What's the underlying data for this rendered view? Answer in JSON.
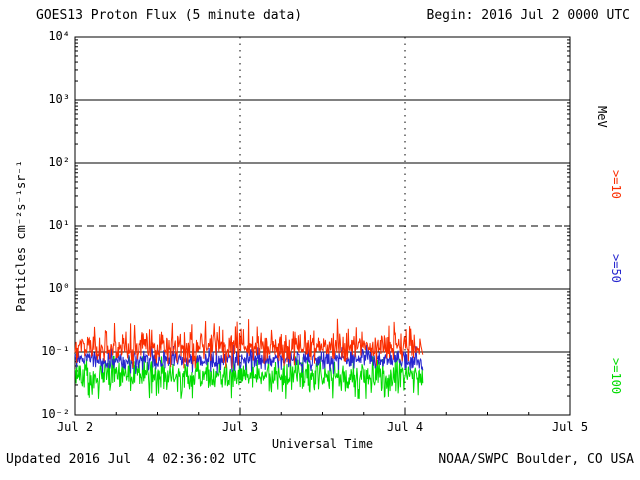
{
  "header": {
    "title": "GOES13 Proton Flux (5 minute data)",
    "begin": "Begin: 2016 Jul 2 0000 UTC"
  },
  "footer": {
    "updated": "Updated 2016 Jul  4 02:36:02 UTC",
    "credit": "NOAA/SWPC Boulder, CO USA"
  },
  "right_axis": {
    "unit": "MeV"
  },
  "chart_data": {
    "type": "line",
    "title": "GOES13 Proton Flux (5 minute data)",
    "xlabel": "Universal Time",
    "ylabel": "Particles cm⁻²s⁻¹sr⁻¹",
    "y_scale": "log",
    "ylim": [
      0.01,
      10000
    ],
    "y_tick_exponents": [
      4,
      3,
      2,
      1,
      0,
      -1,
      -2
    ],
    "y_tick_labels": [
      "10⁴",
      "10³",
      "10²",
      "10¹",
      "10⁰",
      "10⁻¹",
      "10⁻²"
    ],
    "x_tick_days": [
      0,
      1,
      2,
      3
    ],
    "x_tick_labels": [
      "Jul 2",
      "Jul 3",
      "Jul 4",
      "Jul 5"
    ],
    "x_range_days": [
      0,
      3
    ],
    "begin_time": "2016 Jul 2 0000 UTC",
    "cadence_minutes": 5,
    "data_span_days": 2.108,
    "points_per_day": 288,
    "gridlines": {
      "solid_at": [
        1000,
        100,
        1,
        0.1
      ],
      "dashed_at": [
        10
      ],
      "vertical_dotted_at_days": [
        1,
        2
      ]
    },
    "legend_position": "right-vertical",
    "series": [
      {
        "label": ">=10",
        "unit": "MeV",
        "color": "#fb2d00",
        "approx_mean_flux": 0.12,
        "approx_range": [
          0.06,
          0.38
        ],
        "sim": {
          "base": 0.12,
          "log_sd": 0.13,
          "spike_prob": 0.05,
          "spike_factor": 1.9,
          "clamp": [
            0.055,
            0.38
          ]
        }
      },
      {
        "label": ">=50",
        "unit": "MeV",
        "color": "#2626cf",
        "approx_mean_flux": 0.075,
        "approx_range": [
          0.05,
          0.13
        ],
        "sim": {
          "base": 0.075,
          "log_sd": 0.09,
          "spike_prob": 0.02,
          "spike_factor": 1.3,
          "clamp": [
            0.045,
            0.135
          ]
        }
      },
      {
        "label": ">=100",
        "unit": "MeV",
        "color": "#00dc00",
        "approx_mean_flux": 0.042,
        "approx_range": [
          0.02,
          0.085
        ],
        "sim": {
          "base": 0.042,
          "log_sd": 0.13,
          "spike_prob": 0.05,
          "spike_factor": 0.55,
          "clamp": [
            0.018,
            0.085
          ]
        }
      }
    ]
  }
}
